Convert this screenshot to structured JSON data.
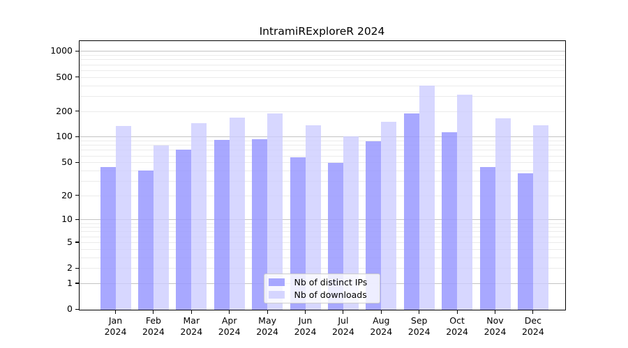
{
  "chart_data": {
    "type": "bar",
    "title": "IntramiRExploreR 2024",
    "categories": [
      "Jan",
      "Feb",
      "Mar",
      "Apr",
      "May",
      "Jun",
      "Jul",
      "Aug",
      "Sep",
      "Oct",
      "Nov",
      "Dec"
    ],
    "category_year": "2024",
    "series": [
      {
        "name": "Nb of distinct IPs",
        "color": "#9999ff",
        "alpha": 0.85,
        "values": [
          44,
          40,
          70,
          92,
          93,
          57,
          49,
          88,
          186,
          114,
          44,
          37
        ]
      },
      {
        "name": "Nb of downloads",
        "color": "#ccccff",
        "alpha": 0.78,
        "values": [
          134,
          79,
          145,
          167,
          186,
          136,
          100,
          150,
          398,
          308,
          164,
          136
        ]
      }
    ],
    "xlabel": "",
    "ylabel": "",
    "y_ticks": [
      0,
      1,
      2,
      5,
      10,
      20,
      50,
      100,
      200,
      500,
      1000
    ],
    "y_major_gridlines": [
      1,
      10,
      100,
      1000
    ],
    "ylim": [
      0,
      1000
    ],
    "scale": "log10(value+1)",
    "grid": true,
    "legend_position": "inside-bottom-center"
  }
}
